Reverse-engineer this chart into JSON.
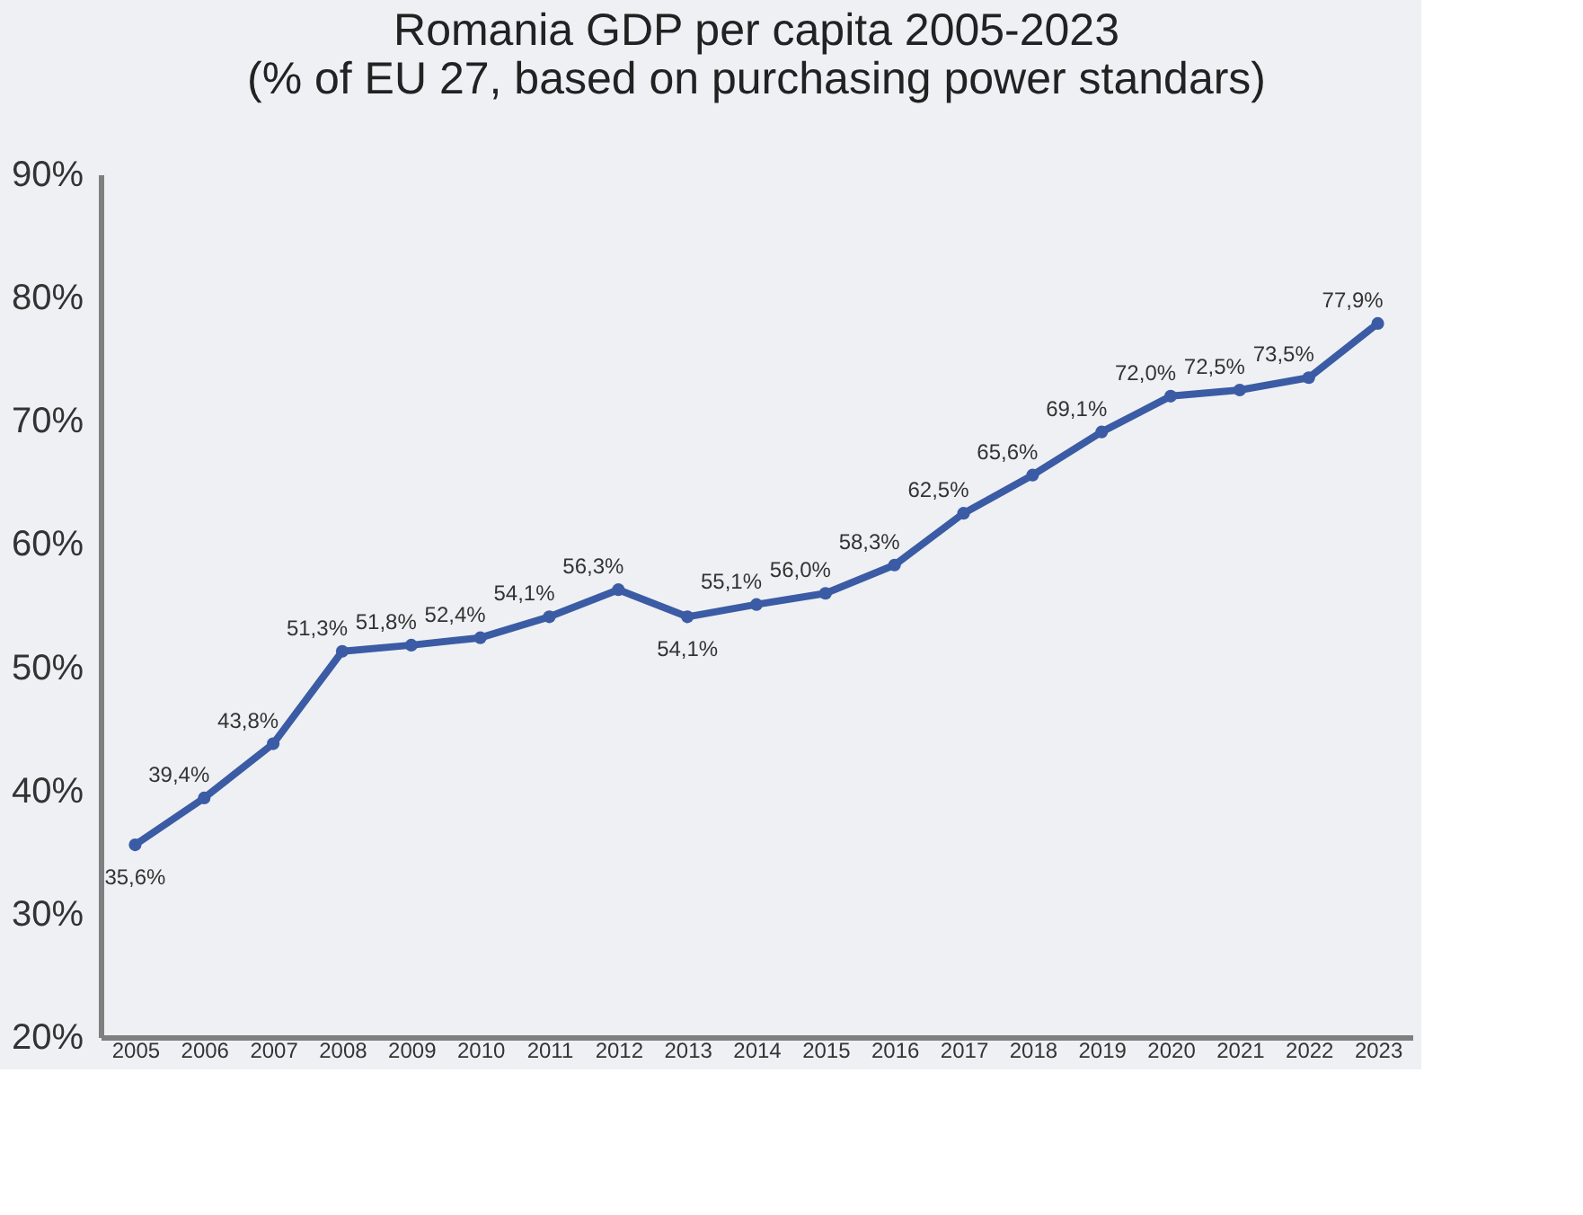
{
  "chart_data": {
    "type": "line",
    "title": "Romania GDP per capita 2005-2023\n(% of EU 27, based on purchasing power standars)",
    "categories": [
      "2005",
      "2006",
      "2007",
      "2008",
      "2009",
      "2010",
      "2011",
      "2012",
      "2013",
      "2014",
      "2015",
      "2016",
      "2017",
      "2018",
      "2019",
      "2020",
      "2021",
      "2022",
      "2023"
    ],
    "series": [
      {
        "color": "#3b5ba5",
        "values": [
          35.6,
          39.4,
          43.8,
          51.3,
          51.8,
          52.4,
          54.1,
          56.3,
          54.1,
          55.1,
          56.0,
          58.3,
          62.5,
          65.6,
          69.1,
          72.0,
          72.5,
          73.5,
          77.9
        ],
        "value_labels": [
          "35,6%",
          "39,4%",
          "43,8%",
          "51,3%",
          "51,8%",
          "52,4%",
          "54,1%",
          "56,3%",
          "54,1%",
          "55,1%",
          "56,0%",
          "58,3%",
          "62,5%",
          "65,6%",
          "69,1%",
          "72,0%",
          "72,5%",
          "73,5%",
          "77,9%"
        ]
      }
    ],
    "ylim": [
      20,
      90
    ],
    "yticks": [
      {
        "value": 20,
        "label": "20%"
      },
      {
        "value": 30,
        "label": "30%"
      },
      {
        "value": 40,
        "label": "40%"
      },
      {
        "value": 50,
        "label": "50%"
      },
      {
        "value": 60,
        "label": "60%"
      },
      {
        "value": 70,
        "label": "70%"
      },
      {
        "value": 80,
        "label": "80%"
      },
      {
        "value": 90,
        "label": "90%"
      }
    ],
    "marker": "circle",
    "line_style": "solid",
    "grid": false
  }
}
